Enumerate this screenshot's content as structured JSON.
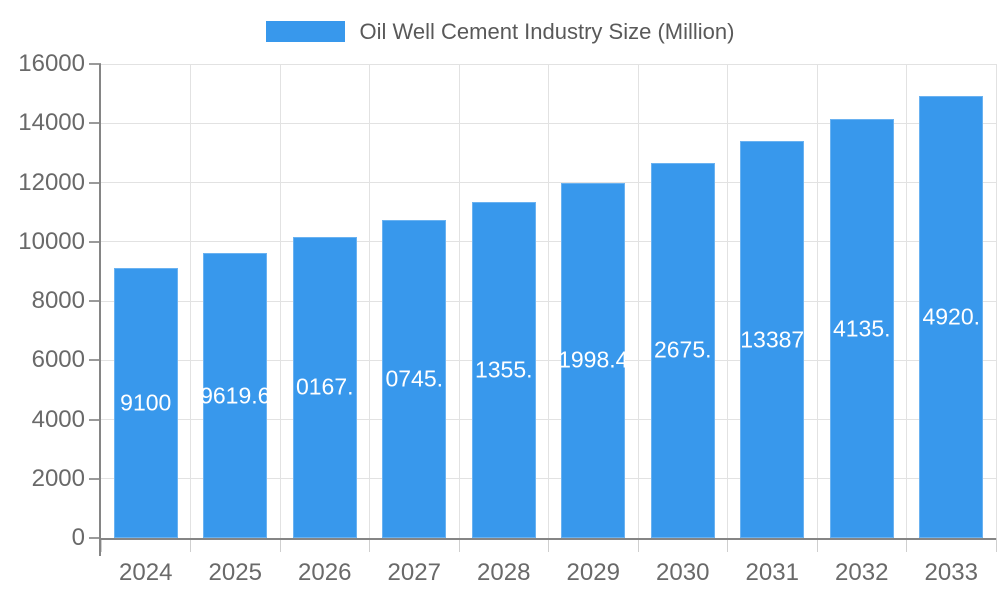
{
  "chart_data": {
    "type": "bar",
    "title": "Oil Well Cement Industry Size (Million)",
    "legend_label": "Oil Well Cement Industry Size (Million)",
    "legend_position": "top",
    "categories": [
      "2024",
      "2025",
      "2026",
      "2027",
      "2028",
      "2029",
      "2030",
      "2031",
      "2032",
      "2033"
    ],
    "values": [
      9100,
      9619.6,
      10167,
      10745,
      11355,
      11998.4,
      12675,
      13387,
      14135,
      14920
    ],
    "bar_labels_visible": [
      "9100",
      "9619.6",
      "0167.",
      "0745.",
      "1355.",
      "1998.4",
      "2675.",
      "13387",
      "4135.",
      "4920."
    ],
    "xlabel": "",
    "ylabel": "",
    "ylim": [
      0,
      16000
    ],
    "yticks": [
      0,
      2000,
      4000,
      6000,
      8000,
      10000,
      12000,
      14000,
      16000
    ],
    "grid": true,
    "colors": {
      "bar": "#3898EC",
      "grid": "#e2e2e2",
      "axis": "#858585",
      "axis_label": "#696969",
      "legend_text": "#595959",
      "bar_label": "#ffffff",
      "background": "#ffffff"
    }
  }
}
